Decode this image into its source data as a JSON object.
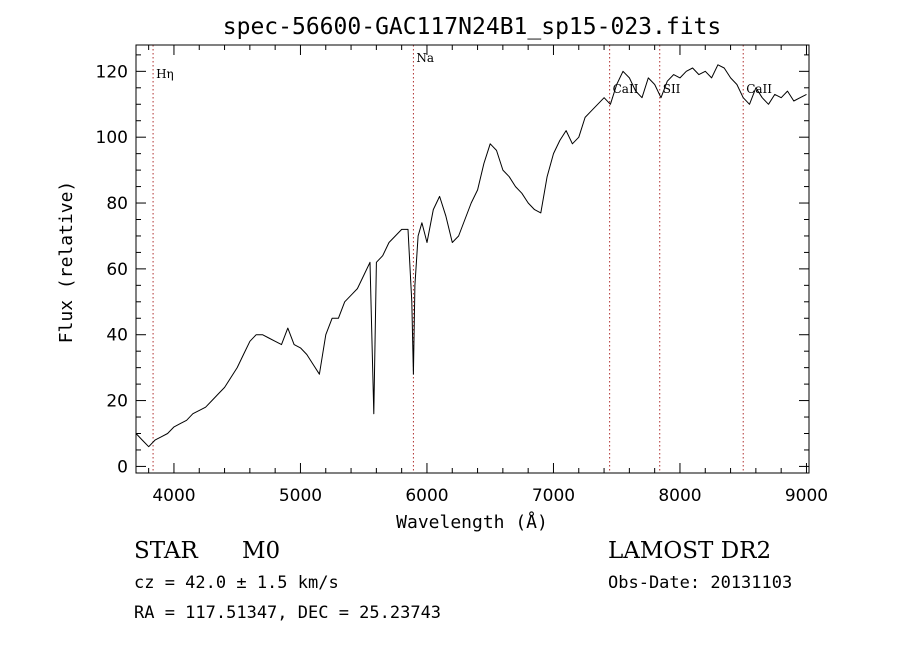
{
  "chart_data": {
    "type": "line",
    "title": "spec-56600-GAC117N24B1_sp15-023.fits",
    "xlabel": "Wavelength (Å)",
    "ylabel": "Flux (relative)",
    "xlim": [
      3700,
      9020
    ],
    "ylim": [
      -2,
      128
    ],
    "xticks": [
      4000,
      5000,
      6000,
      7000,
      8000,
      9000
    ],
    "yticks": [
      0,
      20,
      40,
      60,
      80,
      100,
      120
    ],
    "grid": false,
    "line_color": "#000000",
    "marker_color": "#b03030",
    "spectral_lines": [
      {
        "label": "Hη",
        "wavelength": 3835
      },
      {
        "label": "Na",
        "wavelength": 5893
      },
      {
        "label": "CaII",
        "wavelength": 7444
      },
      {
        "label": "SII",
        "wavelength": 7840
      },
      {
        "label": "CaII",
        "wavelength": 8500
      }
    ],
    "series": [
      {
        "x": [
          3700,
          3750,
          3800,
          3850,
          3900,
          3950,
          4000,
          4050,
          4100,
          4150,
          4200,
          4250,
          4300,
          4350,
          4400,
          4450,
          4500,
          4550,
          4600,
          4650,
          4700,
          4750,
          4800,
          4850,
          4900,
          4950,
          5000,
          5050,
          5100,
          5150,
          5200,
          5250,
          5300,
          5350,
          5400,
          5450,
          5500,
          5550,
          5580,
          5600,
          5650,
          5700,
          5750,
          5800,
          5850,
          5880,
          5893,
          5905,
          5930,
          5960,
          6000,
          6050,
          6100,
          6150,
          6200,
          6250,
          6300,
          6350,
          6400,
          6450,
          6500,
          6550,
          6600,
          6650,
          6700,
          6750,
          6800,
          6850,
          6900,
          6950,
          7000,
          7050,
          7100,
          7150,
          7200,
          7250,
          7300,
          7350,
          7400,
          7450,
          7500,
          7550,
          7600,
          7650,
          7700,
          7750,
          7800,
          7850,
          7900,
          7950,
          8000,
          8050,
          8100,
          8150,
          8200,
          8250,
          8300,
          8350,
          8400,
          8450,
          8500,
          8550,
          8600,
          8650,
          8700,
          8750,
          8800,
          8850,
          8900,
          8950,
          9000
        ],
        "y": [
          10,
          8,
          6,
          8,
          9,
          10,
          12,
          13,
          14,
          16,
          17,
          18,
          20,
          22,
          24,
          27,
          30,
          34,
          38,
          40,
          40,
          39,
          38,
          37,
          42,
          37,
          36,
          34,
          31,
          28,
          40,
          45,
          45,
          50,
          52,
          54,
          58,
          62,
          16,
          62,
          64,
          68,
          70,
          72,
          72,
          50,
          28,
          55,
          70,
          74,
          68,
          78,
          82,
          76,
          68,
          70,
          75,
          80,
          84,
          92,
          98,
          96,
          90,
          88,
          85,
          83,
          80,
          78,
          77,
          88,
          95,
          99,
          102,
          98,
          100,
          106,
          108,
          110,
          112,
          110,
          116,
          120,
          118,
          114,
          112,
          118,
          116,
          112,
          117,
          119,
          118,
          120,
          121,
          119,
          120,
          118,
          122,
          121,
          118,
          116,
          112,
          110,
          115,
          112,
          110,
          113,
          112,
          114,
          111,
          112,
          113
        ]
      }
    ]
  },
  "info": {
    "star_class": "STAR",
    "subclass": "M0",
    "survey": "LAMOST DR2",
    "cz": "cz = 42.0 ± 1.5 km/s",
    "obs_date": "Obs-Date: 20131103",
    "coords": "RA = 117.51347, DEC =  25.23743"
  }
}
